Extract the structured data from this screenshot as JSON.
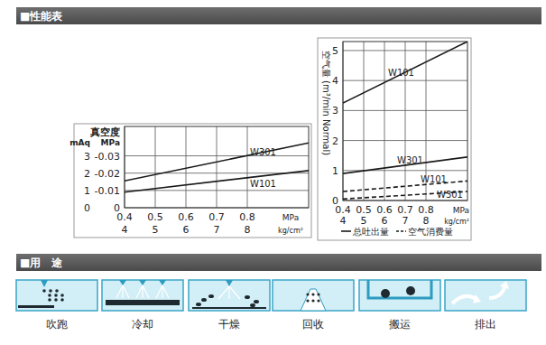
{
  "headers": {
    "performance": "■性能表",
    "usage": "■用　途"
  },
  "chart_data": [
    {
      "type": "line",
      "y_label": "真空度",
      "y_unit": "mAq",
      "y2_unit": "MPa",
      "x_unit": "MPa",
      "x2_unit": "kg/cm²",
      "x": [
        0.4,
        1.0
      ],
      "xlim": [
        0.4,
        1.0
      ],
      "xticks": [
        0.4,
        0.5,
        0.6,
        0.7,
        0.8
      ],
      "x2lim": [
        4,
        10
      ],
      "x2ticks": [
        4,
        5,
        6,
        7,
        8
      ],
      "ylim": [
        0,
        4.7
      ],
      "yticks": [
        0,
        1,
        2,
        3
      ],
      "y2lim": [
        0,
        -0.047
      ],
      "y2ticks": [
        0,
        -0.01,
        -0.02,
        -0.03
      ],
      "grid": true,
      "series": [
        {
          "name": "W301",
          "color": "#1a1a1a",
          "line_style": "solid",
          "values": [
            1.55,
            3.75
          ]
        },
        {
          "name": "W101",
          "color": "#1a1a1a",
          "line_style": "solid",
          "values": [
            0.9,
            2.15
          ]
        }
      ]
    },
    {
      "type": "line",
      "y_label": "空气量 (m³/min Normal)",
      "x_unit": "MPa",
      "x2_unit": "kg/cm²",
      "x": [
        0.4,
        1.0
      ],
      "xlim": [
        0.4,
        1.0
      ],
      "xticks": [
        0.4,
        0.5,
        0.6,
        0.7,
        0.8
      ],
      "x2lim": [
        4,
        10
      ],
      "x2ticks": [
        4,
        5,
        6,
        7,
        8
      ],
      "ylim": [
        0,
        5.3
      ],
      "yticks": [
        0,
        1,
        2,
        3,
        4,
        5
      ],
      "grid": true,
      "series": [
        {
          "name": "W101",
          "color": "#1a1a1a",
          "line_style": "solid",
          "values": [
            3.25,
            5.3
          ]
        },
        {
          "name": "W301",
          "color": "#1a1a1a",
          "line_style": "solid",
          "values": [
            0.9,
            1.45
          ]
        },
        {
          "name": "W101",
          "color": "#1a1a1a",
          "line_style": "dashed",
          "values": [
            0.3,
            0.65
          ]
        },
        {
          "name": "W301",
          "color": "#1a1a1a",
          "line_style": "dashed",
          "values": [
            0.05,
            0.3
          ]
        }
      ],
      "legend_items": [
        {
          "label": "总吐出量",
          "line_style": "solid"
        },
        {
          "label": "空气消费量",
          "line_style": "dashed"
        }
      ]
    }
  ],
  "usage": [
    "吹跑",
    "冷却",
    "干燥",
    "回收",
    "搬运",
    "排出"
  ]
}
